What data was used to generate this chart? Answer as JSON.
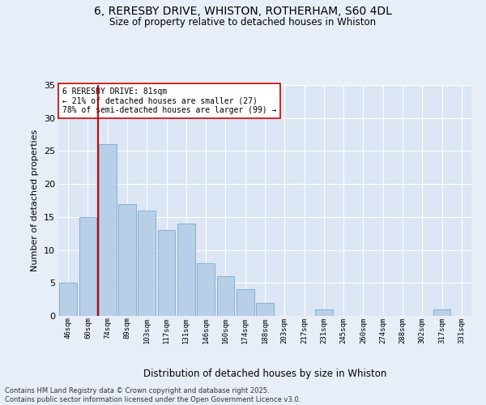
{
  "title1": "6, RERESBY DRIVE, WHISTON, ROTHERHAM, S60 4DL",
  "title2": "Size of property relative to detached houses in Whiston",
  "xlabel": "Distribution of detached houses by size in Whiston",
  "ylabel": "Number of detached properties",
  "categories": [
    "46sqm",
    "60sqm",
    "74sqm",
    "89sqm",
    "103sqm",
    "117sqm",
    "131sqm",
    "146sqm",
    "160sqm",
    "174sqm",
    "188sqm",
    "203sqm",
    "217sqm",
    "231sqm",
    "245sqm",
    "260sqm",
    "274sqm",
    "288sqm",
    "302sqm",
    "317sqm",
    "331sqm"
  ],
  "values": [
    5,
    15,
    26,
    17,
    16,
    13,
    14,
    8,
    6,
    4,
    2,
    0,
    0,
    1,
    0,
    0,
    0,
    0,
    0,
    1,
    0
  ],
  "bar_color": "#b8cfe8",
  "bar_edge_color": "#7aaad0",
  "vline_color": "#cc0000",
  "annotation_text": "6 RERESBY DRIVE: 81sqm\n← 21% of detached houses are smaller (27)\n78% of semi-detached houses are larger (99) →",
  "annotation_box_color": "#ffffff",
  "annotation_box_edge": "#cc0000",
  "ylim": [
    0,
    35
  ],
  "yticks": [
    0,
    5,
    10,
    15,
    20,
    25,
    30,
    35
  ],
  "bg_color": "#dce6f5",
  "fig_bg_color": "#e8eef8",
  "grid_color": "#ffffff",
  "footer": "Contains HM Land Registry data © Crown copyright and database right 2025.\nContains public sector information licensed under the Open Government Licence v3.0."
}
